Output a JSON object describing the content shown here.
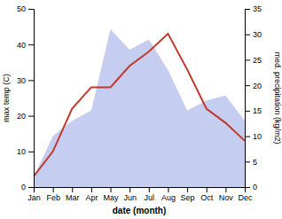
{
  "chart_data": {
    "type": "line",
    "categories": [
      "Jan",
      "Feb",
      "Mar",
      "Apr",
      "May",
      "Jun",
      "Jul",
      "Aug",
      "Sep",
      "Oct",
      "Nov",
      "Dec"
    ],
    "xlabel": "date (month)",
    "ylabel": "max temp (C)",
    "y2label": "med. precipitation (kg/m2)",
    "series": [
      {
        "type": "area",
        "axis": "y2",
        "color": "#c5cdf0",
        "values": [
          2,
          10,
          13,
          15,
          31,
          27,
          29,
          23,
          15,
          17,
          18,
          13
        ]
      },
      {
        "type": "line",
        "color": "#c0392b",
        "values": [
          3,
          10,
          22,
          28,
          28,
          34,
          38,
          43,
          33,
          22,
          18,
          13
        ]
      }
    ],
    "ylim": [
      0,
      50
    ],
    "yticks": [
      0,
      10,
      20,
      30,
      40,
      50
    ],
    "y2lim": [
      0,
      35
    ],
    "y2ticks": [
      0,
      5,
      10,
      15,
      20,
      25,
      30,
      35
    ],
    "grid": false
  }
}
